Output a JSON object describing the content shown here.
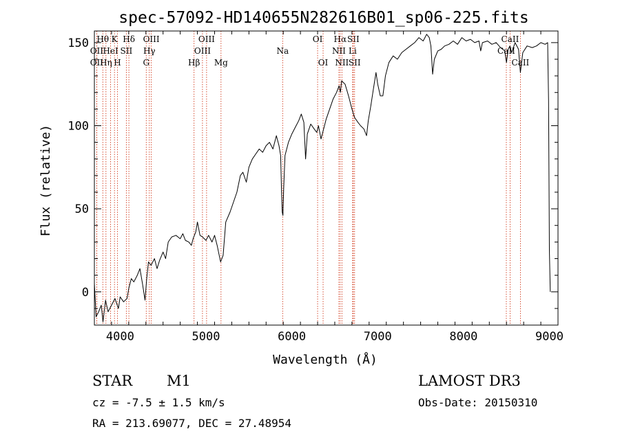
{
  "chart_data": {
    "type": "line",
    "title": "spec-57092-HD140655N282616B01_sp06-225.fits",
    "xlabel": "Wavelength (Å)",
    "ylabel": "Flux (relative)",
    "xlim": [
      3700,
      9100
    ],
    "ylim": [
      -20,
      157
    ],
    "x_ticks": [
      4000,
      5000,
      6000,
      7000,
      8000,
      9000
    ],
    "y_ticks": [
      0,
      50,
      100,
      150
    ],
    "series": [
      {
        "name": "flux",
        "color": "#000000",
        "points": [
          [
            3700,
            5
          ],
          [
            3720,
            -15
          ],
          [
            3750,
            -12
          ],
          [
            3780,
            -8
          ],
          [
            3800,
            -18
          ],
          [
            3830,
            -5
          ],
          [
            3860,
            -12
          ],
          [
            3900,
            -8
          ],
          [
            3940,
            -4
          ],
          [
            3980,
            -10
          ],
          [
            4000,
            -3
          ],
          [
            4040,
            -6
          ],
          [
            4080,
            -4
          ],
          [
            4100,
            2
          ],
          [
            4130,
            8
          ],
          [
            4160,
            6
          ],
          [
            4200,
            10
          ],
          [
            4230,
            14
          ],
          [
            4260,
            5
          ],
          [
            4290,
            -5
          ],
          [
            4310,
            8
          ],
          [
            4330,
            18
          ],
          [
            4360,
            16
          ],
          [
            4400,
            20
          ],
          [
            4430,
            14
          ],
          [
            4460,
            19
          ],
          [
            4500,
            24
          ],
          [
            4530,
            20
          ],
          [
            4560,
            30
          ],
          [
            4600,
            33
          ],
          [
            4650,
            34
          ],
          [
            4700,
            32
          ],
          [
            4730,
            35
          ],
          [
            4760,
            31
          ],
          [
            4800,
            30
          ],
          [
            4830,
            28
          ],
          [
            4850,
            32
          ],
          [
            4880,
            36
          ],
          [
            4900,
            42
          ],
          [
            4930,
            34
          ],
          [
            4960,
            33
          ],
          [
            5000,
            31
          ],
          [
            5030,
            34
          ],
          [
            5070,
            30
          ],
          [
            5100,
            34
          ],
          [
            5130,
            28
          ],
          [
            5170,
            18
          ],
          [
            5200,
            22
          ],
          [
            5230,
            42
          ],
          [
            5280,
            48
          ],
          [
            5320,
            54
          ],
          [
            5360,
            60
          ],
          [
            5400,
            70
          ],
          [
            5430,
            72
          ],
          [
            5470,
            66
          ],
          [
            5500,
            75
          ],
          [
            5540,
            80
          ],
          [
            5580,
            83
          ],
          [
            5620,
            86
          ],
          [
            5660,
            84
          ],
          [
            5700,
            88
          ],
          [
            5740,
            90
          ],
          [
            5780,
            86
          ],
          [
            5820,
            94
          ],
          [
            5850,
            88
          ],
          [
            5870,
            82
          ],
          [
            5880,
            60
          ],
          [
            5888,
            48
          ],
          [
            5896,
            46
          ],
          [
            5905,
            62
          ],
          [
            5920,
            82
          ],
          [
            5960,
            90
          ],
          [
            6000,
            95
          ],
          [
            6040,
            99
          ],
          [
            6080,
            103
          ],
          [
            6110,
            107
          ],
          [
            6140,
            102
          ],
          [
            6160,
            80
          ],
          [
            6180,
            95
          ],
          [
            6220,
            101
          ],
          [
            6260,
            98
          ],
          [
            6290,
            96
          ],
          [
            6310,
            100
          ],
          [
            6340,
            92
          ],
          [
            6370,
            98
          ],
          [
            6400,
            104
          ],
          [
            6440,
            110
          ],
          [
            6480,
            116
          ],
          [
            6520,
            120
          ],
          [
            6550,
            124
          ],
          [
            6565,
            120
          ],
          [
            6580,
            127
          ],
          [
            6620,
            125
          ],
          [
            6660,
            118
          ],
          [
            6700,
            110
          ],
          [
            6730,
            105
          ],
          [
            6770,
            102
          ],
          [
            6800,
            100
          ],
          [
            6840,
            98
          ],
          [
            6870,
            94
          ],
          [
            6890,
            103
          ],
          [
            6920,
            112
          ],
          [
            6950,
            122
          ],
          [
            6980,
            132
          ],
          [
            7000,
            125
          ],
          [
            7030,
            118
          ],
          [
            7060,
            118
          ],
          [
            7090,
            130
          ],
          [
            7130,
            138
          ],
          [
            7180,
            142
          ],
          [
            7230,
            140
          ],
          [
            7280,
            144
          ],
          [
            7330,
            146
          ],
          [
            7380,
            148
          ],
          [
            7430,
            150
          ],
          [
            7480,
            153
          ],
          [
            7530,
            151
          ],
          [
            7570,
            155
          ],
          [
            7600,
            153
          ],
          [
            7620,
            148
          ],
          [
            7640,
            131
          ],
          [
            7660,
            140
          ],
          [
            7700,
            145
          ],
          [
            7740,
            146
          ],
          [
            7780,
            148
          ],
          [
            7830,
            149
          ],
          [
            7880,
            151
          ],
          [
            7930,
            149
          ],
          [
            7980,
            153
          ],
          [
            8030,
            151
          ],
          [
            8080,
            152
          ],
          [
            8130,
            150
          ],
          [
            8180,
            151
          ],
          [
            8200,
            145
          ],
          [
            8220,
            150
          ],
          [
            8280,
            151
          ],
          [
            8330,
            149
          ],
          [
            8380,
            150
          ],
          [
            8430,
            147
          ],
          [
            8480,
            145
          ],
          [
            8500,
            138
          ],
          [
            8520,
            146
          ],
          [
            8540,
            148
          ],
          [
            8560,
            144
          ],
          [
            8600,
            150
          ],
          [
            8640,
            146
          ],
          [
            8662,
            132
          ],
          [
            8690,
            144
          ],
          [
            8740,
            148
          ],
          [
            8800,
            147
          ],
          [
            8850,
            148
          ],
          [
            8900,
            150
          ],
          [
            8950,
            149
          ],
          [
            8980,
            150
          ],
          [
            8990,
            115
          ],
          [
            9000,
            25
          ],
          [
            9010,
            0
          ]
        ]
      }
    ],
    "line_markers": [
      {
        "label": "Hθ",
        "wave": 3798,
        "row": 0
      },
      {
        "label": "OII",
        "wave": 3727,
        "row": 1
      },
      {
        "label": "OII",
        "wave": 3727,
        "row": 2
      },
      {
        "label": "Hη",
        "wave": 3835,
        "row": 2
      },
      {
        "label": "HeI",
        "wave": 3889,
        "row": 1
      },
      {
        "label": "K",
        "wave": 3934,
        "row": 0
      },
      {
        "label": "H",
        "wave": 3969,
        "row": 2
      },
      {
        "label": "SII",
        "wave": 4072,
        "row": 1
      },
      {
        "label": "Hδ",
        "wave": 4102,
        "row": 0
      },
      {
        "label": "OIII",
        "wave": 4363,
        "row": 0
      },
      {
        "label": "Hγ",
        "wave": 4340,
        "row": 1
      },
      {
        "label": "G",
        "wave": 4304,
        "row": 2
      },
      {
        "label": "Hβ",
        "wave": 4861,
        "row": 2
      },
      {
        "label": "OIII",
        "wave": 5007,
        "row": 0
      },
      {
        "label": "OIII",
        "wave": 4959,
        "row": 1
      },
      {
        "label": "Mg",
        "wave": 5175,
        "row": 2
      },
      {
        "label": "Na",
        "wave": 5893,
        "row": 1
      },
      {
        "label": "OI",
        "wave": 6300,
        "row": 0
      },
      {
        "label": "OI",
        "wave": 6364,
        "row": 2
      },
      {
        "label": "Hα",
        "wave": 6563,
        "row": 0
      },
      {
        "label": "NII",
        "wave": 6548,
        "row": 1
      },
      {
        "label": "NII",
        "wave": 6583,
        "row": 2
      },
      {
        "label": "SII",
        "wave": 6716,
        "row": 0
      },
      {
        "label": "Li",
        "wave": 6708,
        "row": 1
      },
      {
        "label": "SII",
        "wave": 6731,
        "row": 2
      },
      {
        "label": "CaII",
        "wave": 8542,
        "row": 0
      },
      {
        "label": "CaII",
        "wave": 8498,
        "row": 1
      },
      {
        "label": "CaII",
        "wave": 8662,
        "row": 2
      }
    ]
  },
  "info": {
    "object_type": "STAR",
    "subclass": "M1",
    "survey": "LAMOST DR3",
    "cz": "cz = -7.5 ± 1.5 km/s",
    "obs_date": "Obs-Date: 20150310",
    "coords": "RA = 213.69077, DEC =  27.48954"
  },
  "colors": {
    "spectrum": "#000000",
    "marker_line": "#cc2200",
    "axis": "#000000",
    "background": "#ffffff"
  }
}
